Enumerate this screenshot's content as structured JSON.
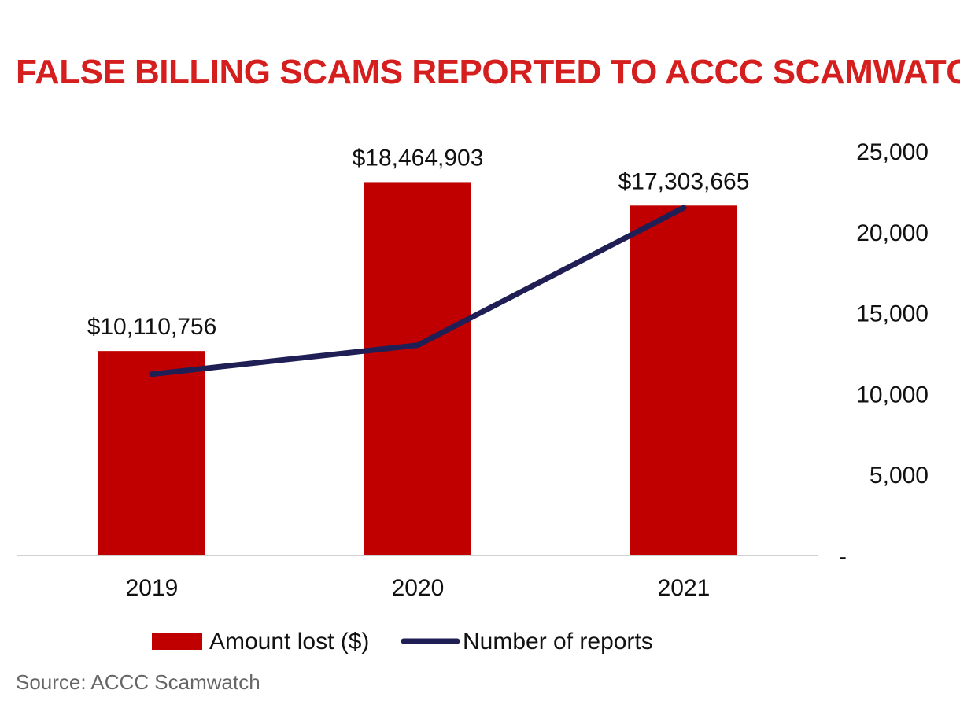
{
  "chart_data": {
    "type": "bar",
    "title": "FALSE BILLING SCAMS REPORTED TO ACCC SCAMWATCH",
    "categories": [
      "2019",
      "2020",
      "2021"
    ],
    "series": [
      {
        "name": "Amount lost ($)",
        "type": "bar",
        "axis": "left",
        "values": [
          10110756,
          18464903,
          17303665
        ],
        "value_labels": [
          "$10,110,756",
          "$18,464,903",
          "$17,303,665"
        ],
        "color": "#c00000"
      },
      {
        "name": "Number of reports",
        "type": "line",
        "axis": "right",
        "values": [
          11200,
          13000,
          21500
        ],
        "color": "#1f1f55"
      }
    ],
    "left_axis": {
      "visible": false,
      "ylim": [
        0,
        20000000
      ]
    },
    "right_axis": {
      "ylim": [
        0,
        25000
      ],
      "ticks": [
        0,
        5000,
        10000,
        15000,
        20000,
        25000
      ],
      "tick_labels": [
        "-",
        "5,000",
        "10,000",
        "15,000",
        "20,000",
        "25,000"
      ]
    },
    "grid": false,
    "legend": {
      "position": "bottom"
    },
    "source": "Source: ACCC Scamwatch"
  }
}
